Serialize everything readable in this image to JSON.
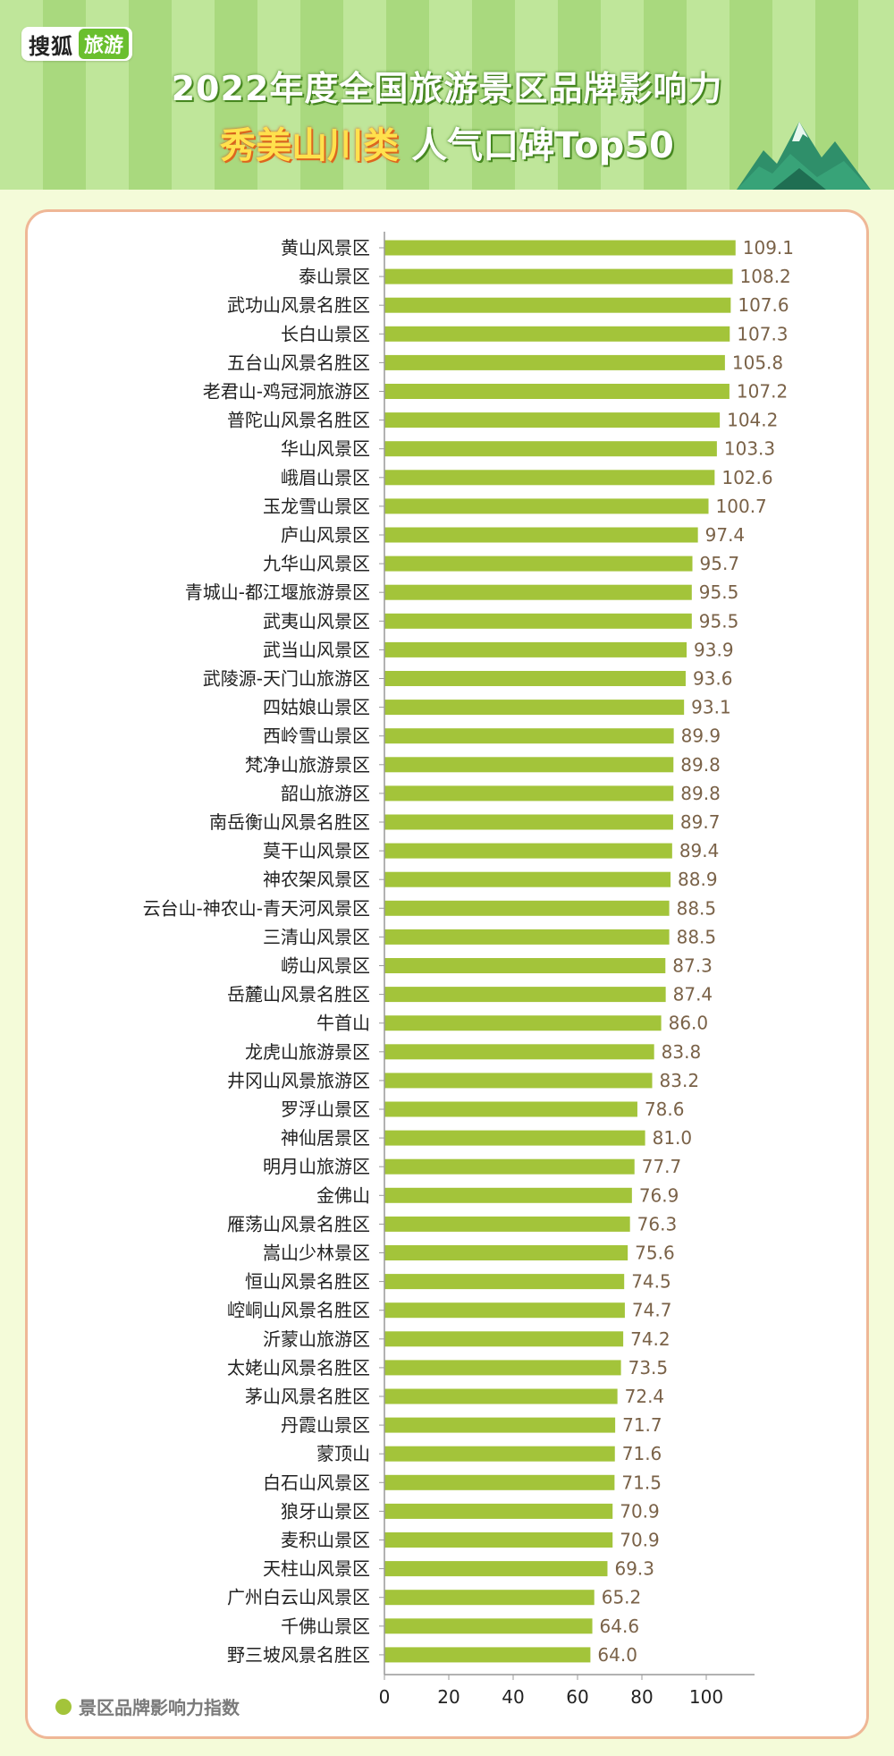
{
  "header": {
    "logo": {
      "brand": "搜狐",
      "tag": "旅游"
    },
    "title_line1": "2022年度全国旅游景区品牌影响力",
    "title_highlight": "秀美山川类",
    "title_rest": "人气口碑Top50"
  },
  "colors": {
    "bar": "#a3c43a",
    "value_label": "#7a6248",
    "category_label": "#222222",
    "axis": "#999999",
    "header_stripe_a": "#bfe69a",
    "header_stripe_b": "#a9d97e",
    "card_border": "#efb796"
  },
  "chart_data": {
    "type": "bar",
    "orientation": "horizontal",
    "categories": [
      "黄山风景区",
      "泰山景区",
      "武功山风景名胜区",
      "长白山景区",
      "五台山风景名胜区",
      "老君山-鸡冠洞旅游区",
      "普陀山风景名胜区",
      "华山风景区",
      "峨眉山景区",
      "玉龙雪山景区",
      "庐山风景区",
      "九华山风景区",
      "青城山-都江堰旅游景区",
      "武夷山风景区",
      "武当山风景区",
      "武陵源-天门山旅游区",
      "四姑娘山景区",
      "西岭雪山景区",
      "梵净山旅游景区",
      "韶山旅游区",
      "南岳衡山风景名胜区",
      "莫干山风景区",
      "神农架风景区",
      "云台山-神农山-青天河风景区",
      "三清山风景区",
      "崂山风景区",
      "岳麓山风景名胜区",
      "牛首山",
      "龙虎山旅游景区",
      "井冈山风景旅游区",
      "罗浮山景区",
      "神仙居景区",
      "明月山旅游区",
      "金佛山",
      "雁荡山风景名胜区",
      "嵩山少林景区",
      "恒山风景名胜区",
      "崆峒山风景名胜区",
      "沂蒙山旅游区",
      "太姥山风景名胜区",
      "茅山风景名胜区",
      "丹霞山景区",
      "蒙顶山",
      "白石山风景区",
      "狼牙山景区",
      "麦积山景区",
      "天柱山风景区",
      "广州白云山风景区",
      "千佛山景区",
      "野三坡风景名胜区"
    ],
    "series": [
      {
        "values": [
          109.1,
          108.2,
          107.6,
          107.3,
          105.8,
          107.2,
          104.2,
          103.3,
          102.6,
          100.7,
          97.4,
          95.7,
          95.5,
          95.5,
          93.9,
          93.6,
          93.1,
          89.9,
          89.8,
          89.8,
          89.7,
          89.4,
          88.9,
          88.5,
          88.5,
          87.3,
          87.4,
          86.0,
          83.8,
          83.2,
          78.6,
          81.0,
          77.7,
          76.9,
          76.3,
          75.6,
          74.5,
          74.7,
          74.2,
          73.5,
          72.4,
          71.7,
          71.6,
          71.5,
          70.9,
          70.9,
          69.3,
          65.2,
          64.6,
          64.0
        ]
      }
    ],
    "value_labels": [
      "109.1",
      "108.2",
      "107.6",
      "107.3",
      "105.8",
      "107.2",
      "104.2",
      "103.3",
      "102.6",
      "100.7",
      "97.4",
      "95.7",
      "95.5",
      "95.5",
      "93.9",
      "93.6",
      "93.1",
      "89.9",
      "89.8",
      "89.8",
      "89.7",
      "89.4",
      "88.9",
      "88.5",
      "88.5",
      "87.3",
      "87.4",
      "86.0",
      "83.8",
      "83.2",
      "78.6",
      "81.0",
      "77.7",
      "76.9",
      "76.3",
      "75.6",
      "74.5",
      "74.7",
      "74.2",
      "73.5",
      "72.4",
      "71.7",
      "71.6",
      "71.5",
      "70.9",
      "70.9",
      "69.3",
      "65.2",
      "64.6",
      "64.0"
    ],
    "x_ticks": [
      "0",
      "20",
      "40",
      "60",
      "80",
      "100"
    ],
    "xlim": [
      0,
      115
    ],
    "legend": {
      "label": "景区品牌影响力指数",
      "position": "bottom-left"
    },
    "grid": false,
    "title": "",
    "xlabel": "",
    "ylabel": ""
  }
}
